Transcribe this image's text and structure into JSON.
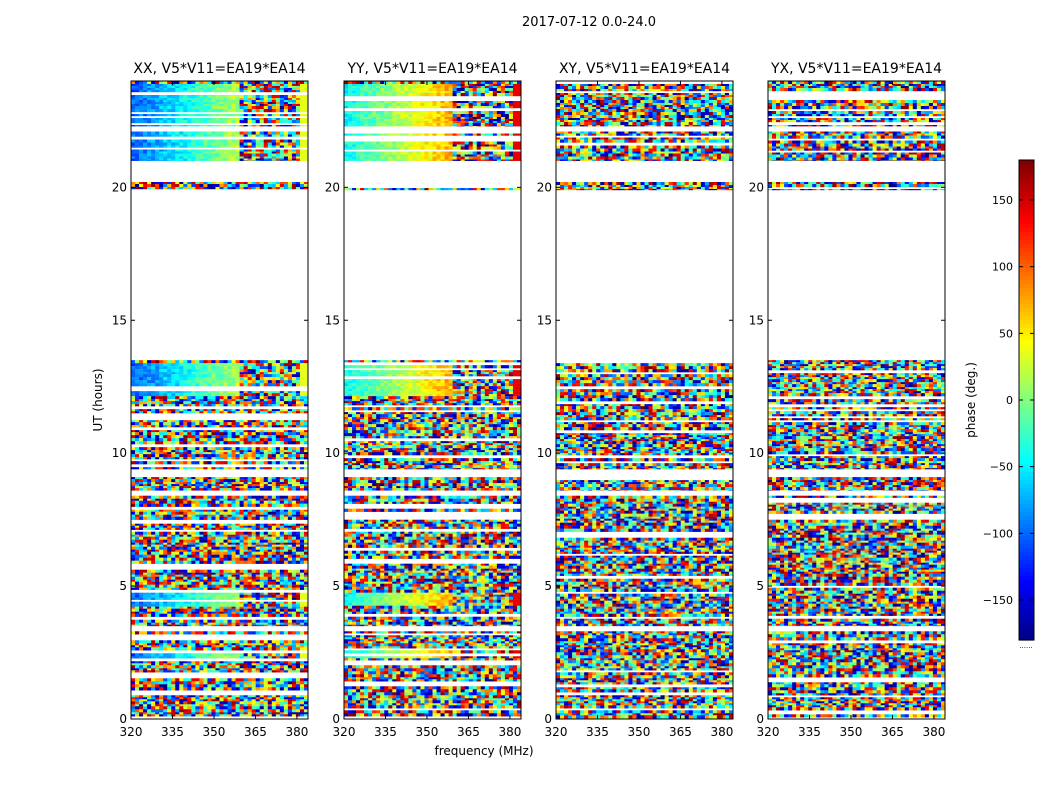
{
  "figure": {
    "suptitle": "2017-07-12 0.0-24.0",
    "ylabel": "UT (hours)",
    "xlabel": "frequency (MHz)",
    "colorbar_label": "phase (deg.)",
    "colorbar_ticks": [
      "150",
      "100",
      "50",
      "0",
      "−50",
      "−100",
      "−150"
    ],
    "colorbar_footer": "......"
  },
  "chart_data": [
    {
      "type": "heatmap",
      "title": "XX, V5*V11=EA19*EA14",
      "polarization": "XX",
      "x_ticks": [
        320,
        335,
        350,
        365,
        380
      ],
      "xlim": [
        320,
        384
      ],
      "y_ticks": [
        0,
        5,
        10,
        15,
        20
      ],
      "ylim": [
        0,
        24
      ],
      "colormap": "jet",
      "zlim": [
        -180,
        180
      ]
    },
    {
      "type": "heatmap",
      "title": "YY, V5*V11=EA19*EA14",
      "polarization": "YY",
      "x_ticks": [
        320,
        335,
        350,
        365,
        380
      ],
      "xlim": [
        320,
        384
      ],
      "y_ticks": [
        0,
        5,
        10,
        15,
        20
      ],
      "ylim": [
        0,
        24
      ],
      "colormap": "jet",
      "zlim": [
        -180,
        180
      ]
    },
    {
      "type": "heatmap",
      "title": "XY, V5*V11=EA19*EA14",
      "polarization": "XY",
      "x_ticks": [
        320,
        335,
        350,
        365,
        380
      ],
      "xlim": [
        320,
        384
      ],
      "y_ticks": [
        0,
        5,
        10,
        15,
        20
      ],
      "ylim": [
        0,
        24
      ],
      "colormap": "jet",
      "zlim": [
        -180,
        180
      ]
    },
    {
      "type": "heatmap",
      "title": "YX, V5*V11=EA19*EA14",
      "polarization": "YX",
      "x_ticks": [
        320,
        335,
        350,
        365,
        380
      ],
      "xlim": [
        320,
        384
      ],
      "y_ticks": [
        0,
        5,
        10,
        15,
        20
      ],
      "ylim": [
        0,
        24
      ],
      "colormap": "jet",
      "zlim": [
        -180,
        180
      ]
    }
  ],
  "data_coverage_hours": [
    [
      0,
      3.3
    ],
    [
      3.5,
      8.4
    ],
    [
      8.6,
      9.1
    ],
    [
      9.4,
      13.5
    ],
    [
      19.9,
      20.2
    ],
    [
      21.0,
      22.1
    ],
    [
      22.3,
      24.0
    ]
  ]
}
